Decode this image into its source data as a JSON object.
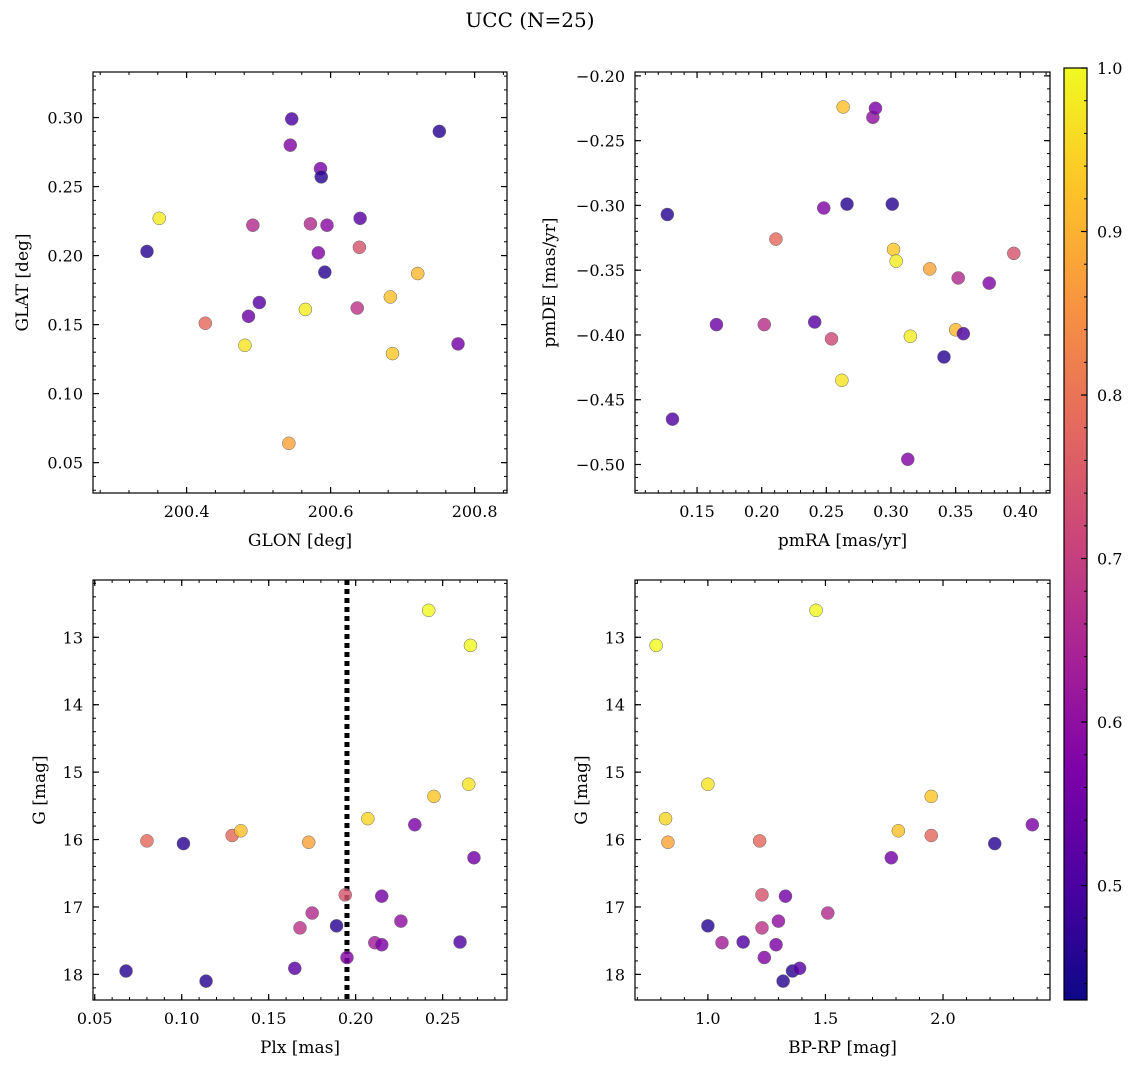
{
  "figure_title": "UCC (N=25)",
  "colorbar": {
    "colormap": "plasma",
    "range": [
      0.43,
      1.0
    ],
    "ticks": [
      "0.5",
      "0.6",
      "0.7",
      "0.8",
      "0.9",
      "1.0"
    ]
  },
  "chart_data": [
    {
      "type": "scatter",
      "xlabel": "GLON [deg]",
      "ylabel": "GLAT [deg]",
      "xlim": [
        200.27,
        200.845
      ],
      "ylim": [
        0.028,
        0.333
      ],
      "yinvert": false,
      "xticks": [
        "200.4",
        "200.6",
        "200.8"
      ],
      "yticks": [
        "0.05",
        "0.10",
        "0.15",
        "0.20",
        "0.25",
        "0.30"
      ],
      "points": [
        {
          "x": 200.345,
          "y": 0.203,
          "c": 0.46
        },
        {
          "x": 200.362,
          "y": 0.227,
          "c": 0.98
        },
        {
          "x": 200.426,
          "y": 0.151,
          "c": 0.78
        },
        {
          "x": 200.481,
          "y": 0.135,
          "c": 0.97
        },
        {
          "x": 200.486,
          "y": 0.156,
          "c": 0.55
        },
        {
          "x": 200.492,
          "y": 0.222,
          "c": 0.66
        },
        {
          "x": 200.501,
          "y": 0.166,
          "c": 0.52
        },
        {
          "x": 200.542,
          "y": 0.064,
          "c": 0.88
        },
        {
          "x": 200.544,
          "y": 0.28,
          "c": 0.58
        },
        {
          "x": 200.546,
          "y": 0.299,
          "c": 0.5
        },
        {
          "x": 200.565,
          "y": 0.161,
          "c": 0.98
        },
        {
          "x": 200.572,
          "y": 0.223,
          "c": 0.66
        },
        {
          "x": 200.583,
          "y": 0.202,
          "c": 0.58
        },
        {
          "x": 200.586,
          "y": 0.263,
          "c": 0.57
        },
        {
          "x": 200.587,
          "y": 0.257,
          "c": 0.46
        },
        {
          "x": 200.592,
          "y": 0.188,
          "c": 0.46
        },
        {
          "x": 200.595,
          "y": 0.222,
          "c": 0.59
        },
        {
          "x": 200.637,
          "y": 0.162,
          "c": 0.68
        },
        {
          "x": 200.64,
          "y": 0.206,
          "c": 0.74
        },
        {
          "x": 200.641,
          "y": 0.227,
          "c": 0.52
        },
        {
          "x": 200.683,
          "y": 0.17,
          "c": 0.92
        },
        {
          "x": 200.686,
          "y": 0.129,
          "c": 0.93
        },
        {
          "x": 200.721,
          "y": 0.187,
          "c": 0.91
        },
        {
          "x": 200.751,
          "y": 0.29,
          "c": 0.46
        },
        {
          "x": 200.777,
          "y": 0.136,
          "c": 0.56
        }
      ]
    },
    {
      "type": "scatter",
      "xlabel": "pmRA [mas/yr]",
      "ylabel": "pmDE [mas/yr]",
      "xlim": [
        0.102,
        0.423
      ],
      "ylim": [
        -0.522,
        -0.197
      ],
      "yinvert": false,
      "xticks": [
        "0.15",
        "0.20",
        "0.25",
        "0.30",
        "0.35",
        "0.40"
      ],
      "yticks": [
        "−0.50",
        "−0.45",
        "−0.40",
        "−0.35",
        "−0.30",
        "−0.25",
        "−0.20"
      ],
      "points": [
        {
          "x": 0.127,
          "y": -0.307,
          "c": 0.46
        },
        {
          "x": 0.131,
          "y": -0.465,
          "c": 0.51
        },
        {
          "x": 0.165,
          "y": -0.392,
          "c": 0.55
        },
        {
          "x": 0.202,
          "y": -0.392,
          "c": 0.67
        },
        {
          "x": 0.211,
          "y": -0.326,
          "c": 0.78
        },
        {
          "x": 0.241,
          "y": -0.39,
          "c": 0.52
        },
        {
          "x": 0.248,
          "y": -0.302,
          "c": 0.58
        },
        {
          "x": 0.254,
          "y": -0.403,
          "c": 0.72
        },
        {
          "x": 0.262,
          "y": -0.435,
          "c": 0.97
        },
        {
          "x": 0.263,
          "y": -0.224,
          "c": 0.92
        },
        {
          "x": 0.266,
          "y": -0.299,
          "c": 0.46
        },
        {
          "x": 0.286,
          "y": -0.232,
          "c": 0.6
        },
        {
          "x": 0.288,
          "y": -0.225,
          "c": 0.57
        },
        {
          "x": 0.301,
          "y": -0.299,
          "c": 0.46
        },
        {
          "x": 0.302,
          "y": -0.334,
          "c": 0.93
        },
        {
          "x": 0.304,
          "y": -0.343,
          "c": 0.98
        },
        {
          "x": 0.313,
          "y": -0.496,
          "c": 0.58
        },
        {
          "x": 0.315,
          "y": -0.401,
          "c": 0.98
        },
        {
          "x": 0.33,
          "y": -0.349,
          "c": 0.88
        },
        {
          "x": 0.341,
          "y": -0.417,
          "c": 0.46
        },
        {
          "x": 0.35,
          "y": -0.396,
          "c": 0.91
        },
        {
          "x": 0.352,
          "y": -0.356,
          "c": 0.66
        },
        {
          "x": 0.356,
          "y": -0.399,
          "c": 0.5
        },
        {
          "x": 0.376,
          "y": -0.36,
          "c": 0.58
        },
        {
          "x": 0.395,
          "y": -0.337,
          "c": 0.74
        }
      ]
    },
    {
      "type": "scatter",
      "xlabel": "Plx [mas]",
      "ylabel": "G [mag]",
      "xlim": [
        0.049,
        0.287
      ],
      "ylim": [
        12.15,
        18.38
      ],
      "yinvert": true,
      "xticks": [
        "0.05",
        "0.10",
        "0.15",
        "0.20",
        "0.25"
      ],
      "yticks": [
        "13",
        "14",
        "15",
        "16",
        "17",
        "18"
      ],
      "vline": {
        "x": 0.195,
        "style": "dotted"
      },
      "points": [
        {
          "x": 0.068,
          "y": 17.95,
          "c": 0.46
        },
        {
          "x": 0.08,
          "y": 16.02,
          "c": 0.78
        },
        {
          "x": 0.101,
          "y": 16.06,
          "c": 0.46
        },
        {
          "x": 0.114,
          "y": 18.1,
          "c": 0.46
        },
        {
          "x": 0.129,
          "y": 15.94,
          "c": 0.78
        },
        {
          "x": 0.134,
          "y": 15.87,
          "c": 0.92
        },
        {
          "x": 0.165,
          "y": 17.91,
          "c": 0.52
        },
        {
          "x": 0.168,
          "y": 17.31,
          "c": 0.68
        },
        {
          "x": 0.173,
          "y": 16.04,
          "c": 0.88
        },
        {
          "x": 0.175,
          "y": 17.09,
          "c": 0.66
        },
        {
          "x": 0.189,
          "y": 17.28,
          "c": 0.46
        },
        {
          "x": 0.194,
          "y": 16.82,
          "c": 0.74
        },
        {
          "x": 0.195,
          "y": 17.75,
          "c": 0.58
        },
        {
          "x": 0.207,
          "y": 15.69,
          "c": 0.95
        },
        {
          "x": 0.211,
          "y": 17.53,
          "c": 0.63
        },
        {
          "x": 0.215,
          "y": 17.56,
          "c": 0.57
        },
        {
          "x": 0.215,
          "y": 16.84,
          "c": 0.56
        },
        {
          "x": 0.226,
          "y": 17.21,
          "c": 0.6
        },
        {
          "x": 0.234,
          "y": 15.78,
          "c": 0.57
        },
        {
          "x": 0.242,
          "y": 12.6,
          "c": 1.0
        },
        {
          "x": 0.245,
          "y": 15.36,
          "c": 0.93
        },
        {
          "x": 0.26,
          "y": 17.52,
          "c": 0.51
        },
        {
          "x": 0.265,
          "y": 15.18,
          "c": 0.97
        },
        {
          "x": 0.266,
          "y": 13.12,
          "c": 1.0
        },
        {
          "x": 0.268,
          "y": 16.27,
          "c": 0.56
        }
      ]
    },
    {
      "type": "scatter",
      "xlabel": "BP-RP [mag]",
      "ylabel": "G [mag]",
      "xlim": [
        0.69,
        2.455
      ],
      "ylim": [
        12.15,
        18.38
      ],
      "yinvert": true,
      "xticks": [
        "1.0",
        "1.5",
        "2.0"
      ],
      "yticks": [
        "13",
        "14",
        "15",
        "16",
        "17",
        "18"
      ],
      "points": [
        {
          "x": 0.78,
          "y": 13.12,
          "c": 1.0
        },
        {
          "x": 0.82,
          "y": 15.69,
          "c": 0.95
        },
        {
          "x": 0.83,
          "y": 16.04,
          "c": 0.88
        },
        {
          "x": 1.0,
          "y": 15.18,
          "c": 0.97
        },
        {
          "x": 1.0,
          "y": 17.28,
          "c": 0.46
        },
        {
          "x": 1.06,
          "y": 17.53,
          "c": 0.63
        },
        {
          "x": 1.15,
          "y": 17.52,
          "c": 0.51
        },
        {
          "x": 1.22,
          "y": 16.02,
          "c": 0.78
        },
        {
          "x": 1.23,
          "y": 16.82,
          "c": 0.74
        },
        {
          "x": 1.23,
          "y": 17.31,
          "c": 0.68
        },
        {
          "x": 1.24,
          "y": 17.75,
          "c": 0.58
        },
        {
          "x": 1.29,
          "y": 17.56,
          "c": 0.57
        },
        {
          "x": 1.3,
          "y": 17.21,
          "c": 0.6
        },
        {
          "x": 1.32,
          "y": 18.1,
          "c": 0.46
        },
        {
          "x": 1.33,
          "y": 16.84,
          "c": 0.56
        },
        {
          "x": 1.36,
          "y": 17.95,
          "c": 0.46
        },
        {
          "x": 1.39,
          "y": 17.91,
          "c": 0.52
        },
        {
          "x": 1.46,
          "y": 12.6,
          "c": 1.0
        },
        {
          "x": 1.51,
          "y": 17.09,
          "c": 0.66
        },
        {
          "x": 1.78,
          "y": 16.27,
          "c": 0.56
        },
        {
          "x": 1.81,
          "y": 15.87,
          "c": 0.92
        },
        {
          "x": 1.95,
          "y": 15.94,
          "c": 0.78
        },
        {
          "x": 1.95,
          "y": 15.36,
          "c": 0.93
        },
        {
          "x": 2.22,
          "y": 16.06,
          "c": 0.46
        },
        {
          "x": 2.38,
          "y": 15.78,
          "c": 0.57
        }
      ]
    }
  ]
}
